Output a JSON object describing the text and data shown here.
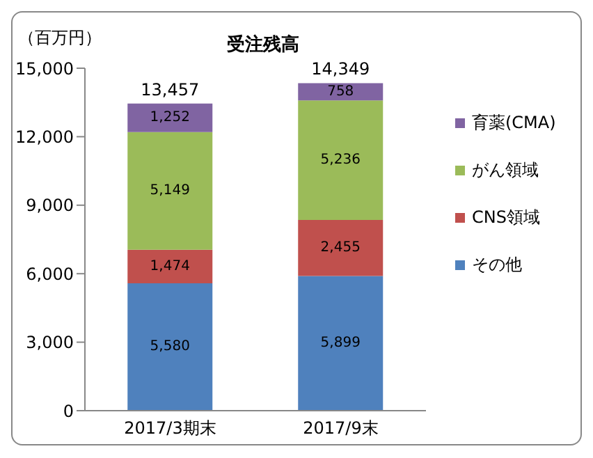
{
  "chart_data": {
    "type": "bar",
    "title": "受注残高",
    "ylabel": "（百万円）",
    "stacked": true,
    "categories": [
      "2017/3期末",
      "2017/9末"
    ],
    "series": [
      {
        "name": "その他",
        "color": "#4f81bd",
        "values": [
          5580,
          5899
        ],
        "value_labels": [
          "5,580",
          "5,899"
        ]
      },
      {
        "name": "CNS領域",
        "color": "#c0504d",
        "values": [
          1474,
          2455
        ],
        "value_labels": [
          "1,474",
          "2,455"
        ]
      },
      {
        "name": "がん領域",
        "color": "#9bbb59",
        "values": [
          5149,
          5236
        ],
        "value_labels": [
          "5,149",
          "5,236"
        ]
      },
      {
        "name": "育薬(CMA)",
        "color": "#8064a2",
        "values": [
          1252,
          758
        ],
        "value_labels": [
          "1,252",
          "758"
        ]
      }
    ],
    "totals": [
      "13,457",
      "14,349"
    ],
    "ylim": [
      0,
      15000
    ],
    "yticks": [
      {
        "value": 0,
        "label": "0"
      },
      {
        "value": 3000,
        "label": "3,000"
      },
      {
        "value": 6000,
        "label": "6,000"
      },
      {
        "value": 9000,
        "label": "9,000"
      },
      {
        "value": 12000,
        "label": "12,000"
      },
      {
        "value": 15000,
        "label": "15,000"
      }
    ],
    "grid": false,
    "legend": "right"
  }
}
